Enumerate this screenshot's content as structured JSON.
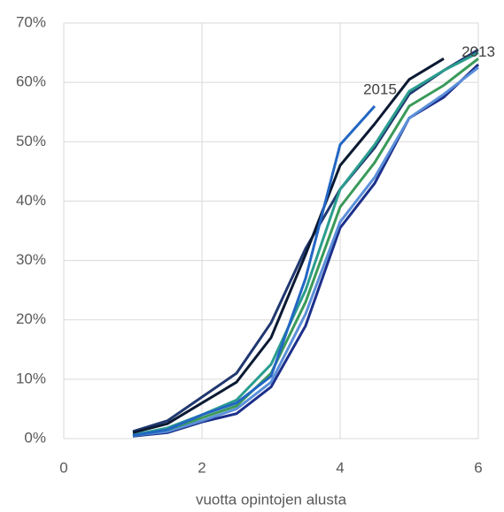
{
  "chart_data": {
    "type": "line",
    "x_label": "vuotta opintojen alusta",
    "x": [
      1,
      1.5,
      2,
      2.5,
      3,
      3.5,
      4,
      4.5,
      5,
      5.5,
      6
    ],
    "xlim": [
      0,
      6
    ],
    "xticks": [
      0,
      2,
      4,
      6
    ],
    "ylim": [
      0,
      70
    ],
    "yticks": [
      {
        "value": 0,
        "label": "0%"
      },
      {
        "value": 10,
        "label": "10%"
      },
      {
        "value": 20,
        "label": "20%"
      },
      {
        "value": 30,
        "label": "30%"
      },
      {
        "value": 40,
        "label": "40%"
      },
      {
        "value": 50,
        "label": "50%"
      },
      {
        "value": 60,
        "label": "60%"
      },
      {
        "value": 70,
        "label": "70%"
      }
    ],
    "grid": true,
    "series": [
      {
        "color": "#1c2f8a",
        "values": [
          0.4,
          1,
          2.8,
          4.2,
          8.7,
          19,
          35.5,
          43,
          54,
          57.5,
          63
        ]
      },
      {
        "color": "#5b8fd9",
        "values": [
          0.5,
          1.2,
          3,
          5,
          9.5,
          21,
          36.5,
          44,
          54,
          58,
          62.5
        ]
      },
      {
        "color": "#3a9a5a",
        "values": [
          0.5,
          1.5,
          3.5,
          5.5,
          11,
          23,
          39,
          46.5,
          56,
          59.5,
          64
        ]
      },
      {
        "color": "#203870",
        "values": [
          1.2,
          3,
          7,
          11,
          19.5,
          32,
          42,
          49,
          58,
          62,
          65.5
        ]
      },
      {
        "name": "2013",
        "color": "#2a9d8f",
        "values": [
          0.6,
          1.8,
          4,
          6.5,
          12.5,
          25,
          42,
          49.5,
          58.5,
          62,
          65
        ]
      },
      {
        "color": "#0b1a33",
        "values": [
          1,
          2.5,
          6,
          9.5,
          17,
          31,
          46,
          53,
          60.5,
          64,
          null
        ]
      },
      {
        "name": "2015",
        "color": "#2266c4",
        "values": [
          0.5,
          1.5,
          4,
          6,
          10.5,
          27,
          49.5,
          56,
          null,
          null,
          null
        ]
      }
    ]
  }
}
